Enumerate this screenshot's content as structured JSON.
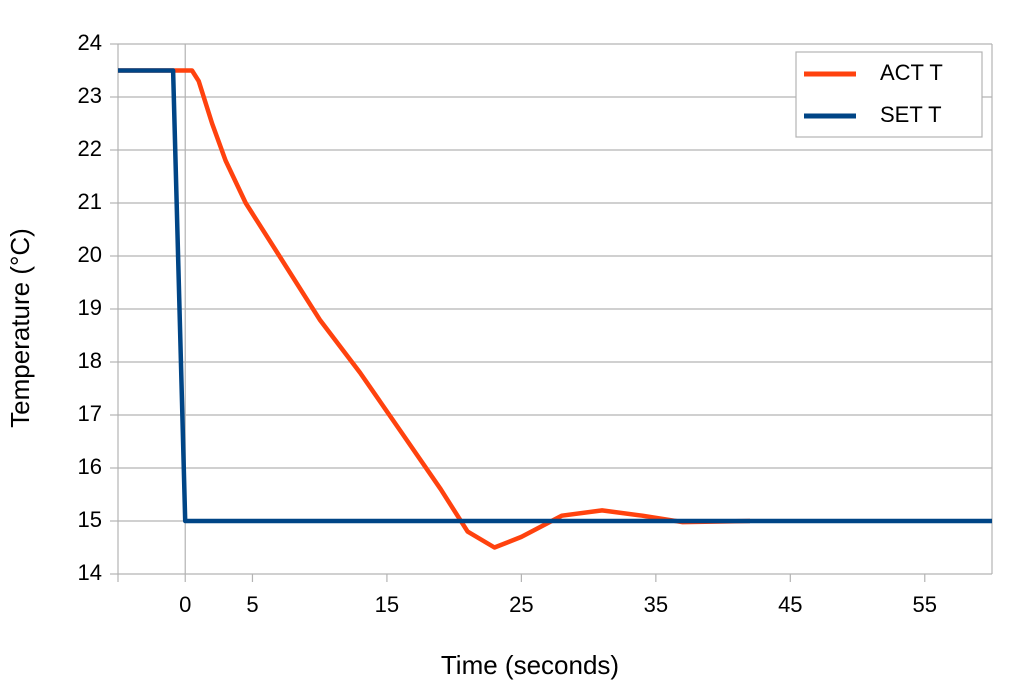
{
  "chart_data": {
    "type": "line",
    "x_label": "Time (seconds)",
    "y_label": "Temperature (°C)",
    "xlim": [
      -5,
      60
    ],
    "ylim": [
      14,
      24
    ],
    "xticks": [
      0,
      5,
      15,
      25,
      35,
      45,
      55
    ],
    "yticks": [
      14,
      15,
      16,
      17,
      18,
      19,
      20,
      21,
      22,
      23,
      24
    ],
    "grid": true,
    "legend": "upper right",
    "series": [
      {
        "name": "ACT T",
        "color": "#ff420e",
        "x": [
          -5,
          0.5,
          1,
          2,
          3,
          4.5,
          7,
          10,
          13,
          16,
          19,
          21,
          23,
          25,
          28,
          31,
          34,
          37,
          42
        ],
        "values": [
          23.5,
          23.5,
          23.3,
          22.5,
          21.8,
          21.0,
          20.0,
          18.8,
          17.8,
          16.7,
          15.6,
          14.8,
          14.5,
          14.7,
          15.1,
          15.2,
          15.1,
          14.98,
          15.0
        ]
      },
      {
        "name": "SET T",
        "color": "#004586",
        "x": [
          -5,
          -0.9,
          0,
          60
        ],
        "values": [
          23.5,
          23.5,
          15,
          15
        ]
      }
    ]
  }
}
